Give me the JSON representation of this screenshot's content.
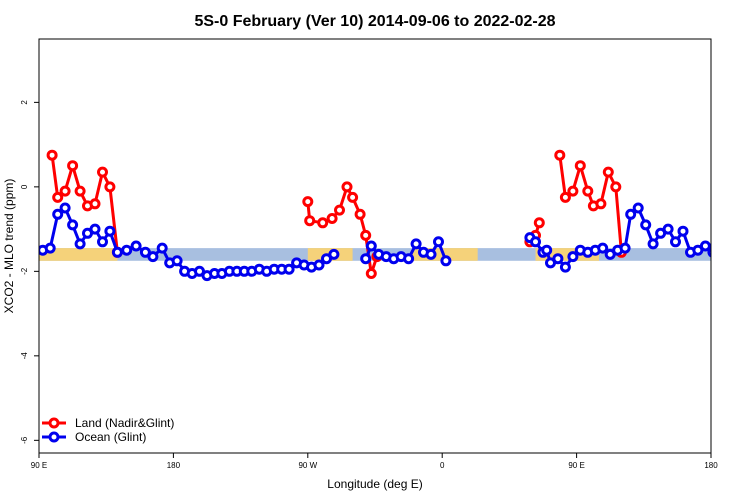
{
  "chart_data": {
    "type": "line",
    "title": "5S-0 February (Ver 10)   2014-09-06 to 2022-02-28",
    "xlabel": "Longitude (deg E)",
    "ylabel": "XCO2 - MLO trend (ppm)",
    "xlim": [
      90,
      450
    ],
    "ylim": [
      -6.3,
      3.5
    ],
    "x_ticks": [
      {
        "value": 90,
        "label": "90 E"
      },
      {
        "value": 162,
        "label": "180"
      },
      {
        "value": 234,
        "label": "90 W"
      },
      {
        "value": 306,
        "label": "0"
      },
      {
        "value": 378,
        "label": "90 E"
      },
      {
        "value": 450,
        "label": "180"
      }
    ],
    "y_ticks": [
      {
        "value": -6,
        "label": "-6"
      },
      {
        "value": -4,
        "label": "-4"
      },
      {
        "value": -2,
        "label": "-2"
      },
      {
        "value": 0,
        "label": "0"
      },
      {
        "value": 2,
        "label": "2"
      }
    ],
    "legend_position": "bottom-left",
    "band": {
      "y_low": -1.75,
      "y_high": -1.45,
      "ocean_color": "#a8bfe0",
      "land_color": "#f5d27a"
    },
    "land_segments_x": [
      [
        90,
        132
      ],
      [
        234,
        258
      ],
      [
        290,
        325
      ],
      [
        356,
        390
      ]
    ],
    "series": [
      {
        "name": "Land (Nadir&Glint)",
        "color": "#ff0000",
        "segments": [
          [
            {
              "x": 97,
              "y": 0.75
            },
            {
              "x": 100,
              "y": -0.25
            },
            {
              "x": 104,
              "y": -0.1
            },
            {
              "x": 108,
              "y": 0.5
            },
            {
              "x": 112,
              "y": -0.1
            },
            {
              "x": 116,
              "y": -0.45
            },
            {
              "x": 120,
              "y": -0.4
            },
            {
              "x": 124,
              "y": 0.35
            },
            {
              "x": 128,
              "y": 0.0
            },
            {
              "x": 132,
              "y": -1.55
            }
          ],
          [
            {
              "x": 234,
              "y": -0.35
            },
            {
              "x": 235,
              "y": -0.8
            },
            {
              "x": 242,
              "y": -0.85
            }
          ],
          [
            {
              "x": 247,
              "y": -0.75
            },
            {
              "x": 251,
              "y": -0.55
            },
            {
              "x": 255,
              "y": 0.0
            },
            {
              "x": 258,
              "y": -0.25
            },
            {
              "x": 262,
              "y": -0.65
            },
            {
              "x": 265,
              "y": -1.15
            },
            {
              "x": 268,
              "y": -2.05
            },
            {
              "x": 271,
              "y": -1.65
            }
          ],
          [
            {
              "x": 353,
              "y": -1.3
            },
            {
              "x": 356,
              "y": -1.15
            },
            {
              "x": 358,
              "y": -0.85
            }
          ],
          [
            {
              "x": 369,
              "y": 0.75
            },
            {
              "x": 372,
              "y": -0.25
            },
            {
              "x": 376,
              "y": -0.1
            },
            {
              "x": 380,
              "y": 0.5
            },
            {
              "x": 384,
              "y": -0.1
            },
            {
              "x": 387,
              "y": -0.45
            },
            {
              "x": 391,
              "y": -0.4
            },
            {
              "x": 395,
              "y": 0.35
            },
            {
              "x": 399,
              "y": 0.0
            },
            {
              "x": 402,
              "y": -1.55
            }
          ]
        ]
      },
      {
        "name": "Ocean (Glint)",
        "color": "#0000ee",
        "segments": [
          [
            {
              "x": 92,
              "y": -1.5
            },
            {
              "x": 96,
              "y": -1.45
            },
            {
              "x": 100,
              "y": -0.65
            },
            {
              "x": 104,
              "y": -0.5
            },
            {
              "x": 108,
              "y": -0.9
            },
            {
              "x": 112,
              "y": -1.35
            },
            {
              "x": 116,
              "y": -1.1
            },
            {
              "x": 120,
              "y": -1.0
            },
            {
              "x": 124,
              "y": -1.3
            },
            {
              "x": 128,
              "y": -1.05
            },
            {
              "x": 132,
              "y": -1.55
            },
            {
              "x": 137,
              "y": -1.5
            },
            {
              "x": 142,
              "y": -1.4
            },
            {
              "x": 147,
              "y": -1.55
            },
            {
              "x": 151,
              "y": -1.65
            },
            {
              "x": 156,
              "y": -1.45
            },
            {
              "x": 160,
              "y": -1.8
            },
            {
              "x": 164,
              "y": -1.75
            },
            {
              "x": 168,
              "y": -2.0
            },
            {
              "x": 172,
              "y": -2.05
            },
            {
              "x": 176,
              "y": -2.0
            },
            {
              "x": 180,
              "y": -2.1
            },
            {
              "x": 184,
              "y": -2.05
            },
            {
              "x": 188,
              "y": -2.05
            },
            {
              "x": 192,
              "y": -2.0
            },
            {
              "x": 196,
              "y": -2.0
            },
            {
              "x": 200,
              "y": -2.0
            },
            {
              "x": 204,
              "y": -2.0
            },
            {
              "x": 208,
              "y": -1.95
            },
            {
              "x": 212,
              "y": -2.0
            },
            {
              "x": 216,
              "y": -1.95
            },
            {
              "x": 220,
              "y": -1.95
            },
            {
              "x": 224,
              "y": -1.95
            },
            {
              "x": 228,
              "y": -1.8
            },
            {
              "x": 232,
              "y": -1.85
            },
            {
              "x": 236,
              "y": -1.9
            },
            {
              "x": 240,
              "y": -1.85
            },
            {
              "x": 244,
              "y": -1.7
            },
            {
              "x": 248,
              "y": -1.6
            }
          ],
          [
            {
              "x": 265,
              "y": -1.7
            },
            {
              "x": 268,
              "y": -1.4
            },
            {
              "x": 272,
              "y": -1.6
            },
            {
              "x": 276,
              "y": -1.65
            },
            {
              "x": 280,
              "y": -1.7
            },
            {
              "x": 284,
              "y": -1.65
            },
            {
              "x": 288,
              "y": -1.7
            },
            {
              "x": 292,
              "y": -1.35
            },
            {
              "x": 296,
              "y": -1.55
            },
            {
              "x": 300,
              "y": -1.6
            },
            {
              "x": 304,
              "y": -1.3
            },
            {
              "x": 308,
              "y": -1.75
            }
          ],
          [
            {
              "x": 353,
              "y": -1.2
            },
            {
              "x": 356,
              "y": -1.3
            },
            {
              "x": 360,
              "y": -1.55
            },
            {
              "x": 362,
              "y": -1.5
            },
            {
              "x": 364,
              "y": -1.8
            },
            {
              "x": 368,
              "y": -1.7
            },
            {
              "x": 372,
              "y": -1.9
            },
            {
              "x": 376,
              "y": -1.65
            },
            {
              "x": 380,
              "y": -1.5
            },
            {
              "x": 384,
              "y": -1.55
            },
            {
              "x": 388,
              "y": -1.5
            },
            {
              "x": 392,
              "y": -1.45
            },
            {
              "x": 396,
              "y": -1.6
            },
            {
              "x": 400,
              "y": -1.5
            },
            {
              "x": 404,
              "y": -1.45
            },
            {
              "x": 407,
              "y": -0.65
            },
            {
              "x": 411,
              "y": -0.5
            },
            {
              "x": 415,
              "y": -0.9
            },
            {
              "x": 419,
              "y": -1.35
            },
            {
              "x": 423,
              "y": -1.1
            },
            {
              "x": 427,
              "y": -1.0
            },
            {
              "x": 431,
              "y": -1.3
            },
            {
              "x": 435,
              "y": -1.05
            },
            {
              "x": 439,
              "y": -1.55
            },
            {
              "x": 443,
              "y": -1.5
            },
            {
              "x": 447,
              "y": -1.4
            },
            {
              "x": 451,
              "y": -1.55
            },
            {
              "x": 455,
              "y": -1.65
            },
            {
              "x": 459,
              "y": -1.45
            },
            {
              "x": 463,
              "y": -1.8
            },
            {
              "x": 467,
              "y": -1.75
            }
          ]
        ]
      }
    ]
  }
}
